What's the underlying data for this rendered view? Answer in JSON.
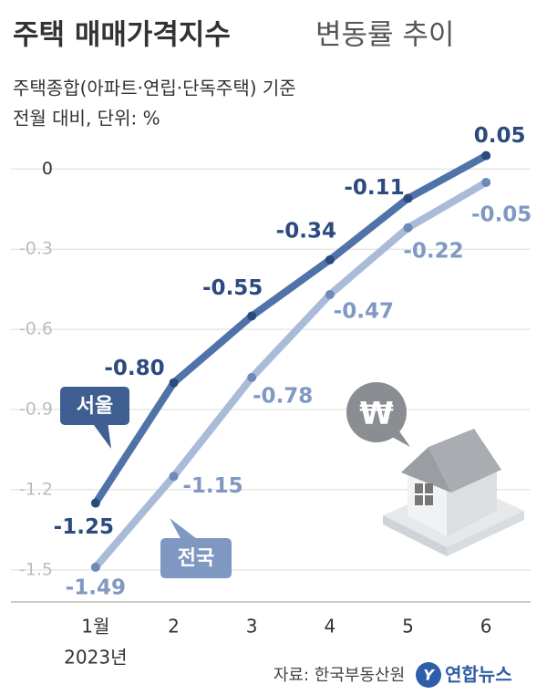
{
  "chart_data": {
    "type": "line",
    "title": "주택 매매가격지수",
    "title_suffix": "변동률 추이",
    "subtitle": [
      "주택종합(아파트·연립·단독주택) 기준",
      "전월 대비, 단위: %"
    ],
    "categories": [
      "1월",
      "2",
      "3",
      "4",
      "5",
      "6"
    ],
    "year_label": "2023년",
    "series": [
      {
        "name": "서울",
        "color": "#4f73a9",
        "values": [
          -1.25,
          -0.8,
          -0.55,
          -0.34,
          -0.11,
          0.05
        ],
        "value_labels": [
          "-1.25",
          "-0.80",
          "-0.55",
          "-0.34",
          "-0.11",
          "0.05"
        ]
      },
      {
        "name": "전국",
        "color": "#a9bbd9",
        "values": [
          -1.49,
          -1.15,
          -0.78,
          -0.47,
          -0.22,
          -0.05
        ],
        "value_labels": [
          "-1.49",
          "-1.15",
          "-0.78",
          "-0.47",
          "-0.22",
          "-0.05"
        ]
      }
    ],
    "ylim": [
      -1.62,
      0.1
    ],
    "yticks": [
      0,
      -0.3,
      -0.6,
      -0.9,
      -1.2,
      -1.5
    ],
    "grid": true,
    "source": "자료: 한국부동산원",
    "logo": "연합뉴스"
  }
}
